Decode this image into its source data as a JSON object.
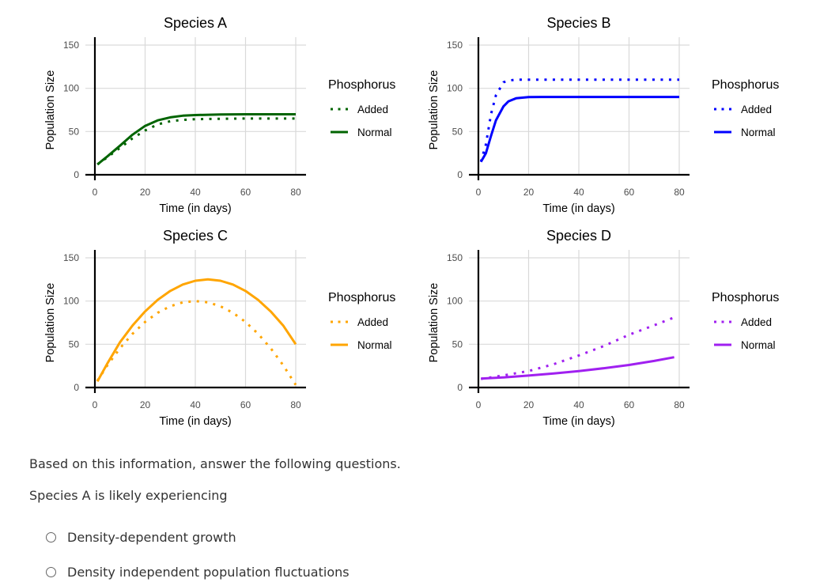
{
  "chart_data": [
    {
      "type": "line",
      "title": "Species A",
      "xlabel": "Time (in days)",
      "ylabel": "Population Size",
      "xlim": [
        0,
        80
      ],
      "ylim": [
        0,
        150
      ],
      "xticks": [
        0,
        20,
        40,
        60,
        80
      ],
      "yticks": [
        0,
        50,
        100,
        150
      ],
      "grid": true,
      "legend_title": "Phosphorus",
      "legend_position": "right",
      "color": "#006400",
      "x": [
        1,
        5,
        10,
        15,
        20,
        25,
        30,
        35,
        40,
        50,
        60,
        70,
        80
      ],
      "series": [
        {
          "name": "Added",
          "style": "dotted",
          "values": [
            12,
            20.4,
            31.1,
            42.2,
            51.2,
            58.3,
            61.9,
            63.5,
            64.3,
            64.8,
            65,
            65,
            65
          ]
        },
        {
          "name": "Normal",
          "style": "solid",
          "values": [
            12,
            21.3,
            33.7,
            46.4,
            56.5,
            62.9,
            66.4,
            68.3,
            69.1,
            69.8,
            70,
            70,
            70
          ]
        }
      ]
    },
    {
      "type": "line",
      "title": "Species B",
      "xlabel": "Time (in days)",
      "ylabel": "Population Size",
      "xlim": [
        0,
        80
      ],
      "ylim": [
        0,
        150
      ],
      "xticks": [
        0,
        20,
        40,
        60,
        80
      ],
      "yticks": [
        0,
        50,
        100,
        150
      ],
      "grid": true,
      "legend_title": "Phosphorus",
      "legend_position": "right",
      "color": "#0000FF",
      "x": [
        1,
        3,
        5,
        7,
        10,
        12,
        15,
        20,
        25,
        30,
        40,
        50,
        60,
        70,
        80
      ],
      "series": [
        {
          "name": "Added",
          "style": "dotted",
          "values": [
            15,
            35,
            69.9,
            92,
            107,
            109,
            109.9,
            110,
            110,
            110,
            110,
            110,
            110,
            110,
            110
          ]
        },
        {
          "name": "Normal",
          "style": "solid",
          "values": [
            15,
            25,
            44.8,
            63,
            79.2,
            85,
            88.4,
            89.8,
            90,
            90,
            90,
            90,
            90,
            90,
            90
          ]
        }
      ]
    },
    {
      "type": "line",
      "title": "Species C",
      "xlabel": "Time (in days)",
      "ylabel": "Population Size",
      "xlim": [
        0,
        80
      ],
      "ylim": [
        0,
        150
      ],
      "xticks": [
        0,
        20,
        40,
        60,
        80
      ],
      "yticks": [
        0,
        50,
        100,
        150
      ],
      "grid": true,
      "legend_title": "Phosphorus",
      "legend_position": "right",
      "color": "#FFA500",
      "x": [
        1,
        5,
        10,
        15,
        20,
        25,
        30,
        35,
        40,
        45,
        50,
        55,
        60,
        65,
        70,
        75,
        80
      ],
      "series": [
        {
          "name": "Added",
          "style": "dotted",
          "values": [
            7.8,
            25.8,
            45.5,
            62.1,
            75.8,
            86.4,
            93.9,
            98.5,
            100,
            98.5,
            93.9,
            86.4,
            75.8,
            62.1,
            45.5,
            25.8,
            3
          ]
        },
        {
          "name": "Normal",
          "style": "solid",
          "values": [
            7,
            28,
            52.4,
            71.7,
            88,
            101.3,
            111.7,
            119.1,
            123.5,
            125,
            123.5,
            119.1,
            111.7,
            101.3,
            88,
            71.7,
            50
          ]
        }
      ]
    },
    {
      "type": "line",
      "title": "Species D",
      "xlabel": "Time (in days)",
      "ylabel": "Population Size",
      "xlim": [
        0,
        80
      ],
      "ylim": [
        0,
        150
      ],
      "xticks": [
        0,
        20,
        40,
        60,
        80
      ],
      "yticks": [
        0,
        50,
        100,
        150
      ],
      "grid": true,
      "legend_title": "Phosphorus",
      "legend_position": "right",
      "color": "#A020F0",
      "x": [
        1,
        10,
        20,
        30,
        40,
        50,
        60,
        70,
        78
      ],
      "series": [
        {
          "name": "Added",
          "style": "dotted",
          "values": [
            10,
            14,
            19,
            27,
            37,
            48,
            61,
            72,
            81
          ]
        },
        {
          "name": "Normal",
          "style": "solid",
          "values": [
            10.2,
            11.7,
            13.8,
            16.2,
            19,
            22.3,
            26.1,
            30.7,
            35
          ]
        }
      ]
    }
  ],
  "question": {
    "intro": "Based on this information, answer the following questions.",
    "prompt": "Species A is likely experiencing",
    "options": [
      "Density-dependent growth",
      "Density independent population fluctuations"
    ]
  }
}
